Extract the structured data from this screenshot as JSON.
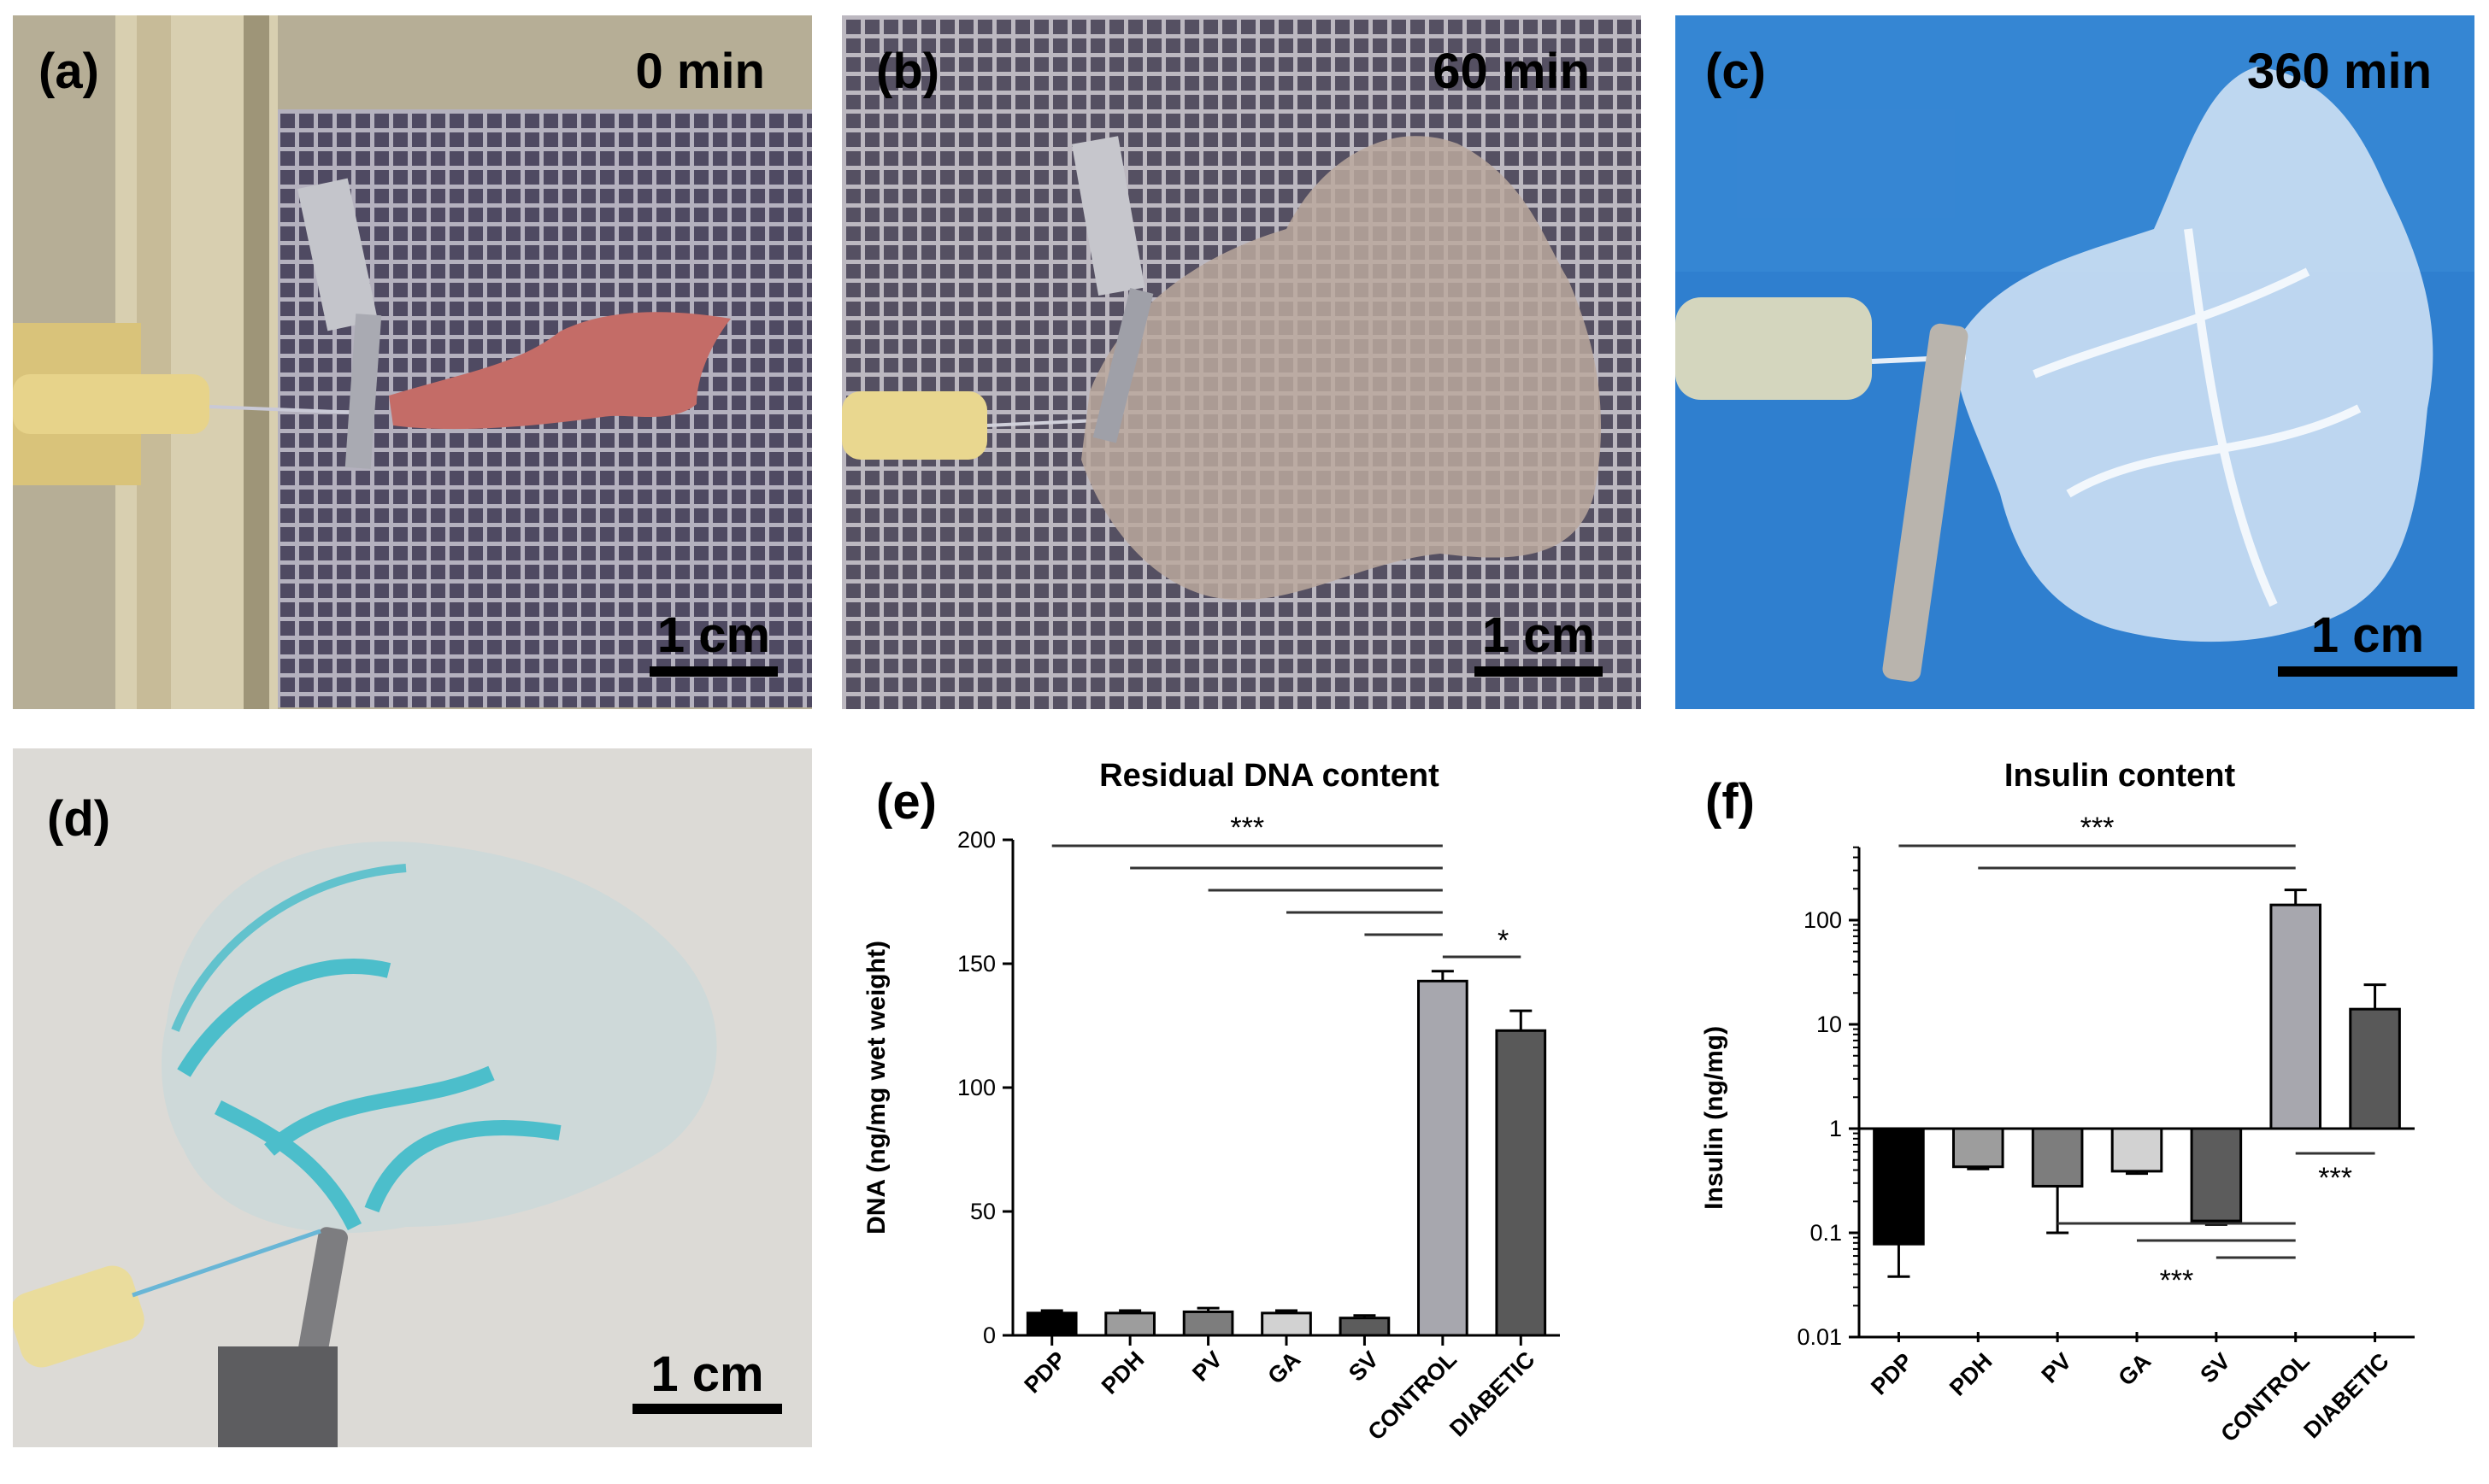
{
  "panels": {
    "a": {
      "label": "(a)",
      "time": "0 min",
      "scale": "1 cm"
    },
    "b": {
      "label": "(b)",
      "time": "60 min",
      "scale": "1 cm"
    },
    "c": {
      "label": "(c)",
      "time": "360 min",
      "scale": "1 cm"
    },
    "d": {
      "label": "(d)",
      "scale": "1 cm"
    },
    "e": {
      "label": "(e)"
    },
    "f": {
      "label": "(f)"
    }
  },
  "colors": {
    "PDP": "#000000",
    "PDH": "#9d9d9d",
    "PV": "#7d7d7d",
    "GA": "#d2d2d2",
    "SV": "#5c5c5c",
    "CONTROL": "#a7a7ae",
    "DIABETIC": "#595959"
  },
  "chart_data": [
    {
      "id": "e",
      "type": "bar",
      "title": "Residual DNA content",
      "xlabel": "",
      "ylabel": "DNA (ng/mg wet weight)",
      "categories": [
        "PDP",
        "PDH",
        "PV",
        "GA",
        "SV",
        "CONTROL",
        "DIABETIC"
      ],
      "values": [
        9,
        9,
        9.5,
        9,
        7,
        143,
        123
      ],
      "errors": [
        1,
        1,
        1.5,
        1,
        1,
        4,
        8
      ],
      "ylim": [
        0,
        200
      ],
      "yticks": [
        0,
        50,
        100,
        150,
        200
      ],
      "scale": "linear",
      "grid": false,
      "significance": [
        {
          "from": "PDP",
          "to": "CONTROL",
          "label": ""
        },
        {
          "from": "PDH",
          "to": "CONTROL",
          "label": ""
        },
        {
          "from": "PV",
          "to": "CONTROL",
          "label": ""
        },
        {
          "from": "GA",
          "to": "CONTROL",
          "label": ""
        },
        {
          "from": "SV",
          "to": "CONTROL",
          "label": ""
        },
        {
          "from": "CONTROL",
          "to": "DIABETIC",
          "label": "*"
        }
      ],
      "sig_group_label": "***"
    },
    {
      "id": "f",
      "type": "bar",
      "title": "Insulin content",
      "xlabel": "",
      "ylabel": "Insulin  (ng/mg)",
      "categories": [
        "PDP",
        "PDH",
        "PV",
        "GA",
        "SV",
        "CONTROL",
        "DIABETIC"
      ],
      "values": [
        0.078,
        0.43,
        0.28,
        0.39,
        0.13,
        140,
        14
      ],
      "error_low": [
        0.038,
        0.41,
        0.1,
        0.37,
        0.12,
        140,
        14
      ],
      "error_high": [
        0.078,
        0.43,
        0.28,
        0.39,
        0.13,
        195,
        24
      ],
      "ylim": [
        0.01,
        500
      ],
      "yticks": [
        0.01,
        0.1,
        1,
        10,
        100
      ],
      "ytick_labels": [
        "0.01",
        "0.1",
        "1",
        "10",
        "100"
      ],
      "scale": "log",
      "baseline": 1,
      "grid": false,
      "significance_top": [
        {
          "from": "PDP",
          "to": "CONTROL"
        },
        {
          "from": "PDH",
          "to": "CONTROL"
        }
      ],
      "sig_top_label": "***",
      "significance_bottom": [
        {
          "from": "PV",
          "to": "CONTROL"
        },
        {
          "from": "GA",
          "to": "CONTROL"
        },
        {
          "from": "SV",
          "to": "CONTROL"
        }
      ],
      "sig_bottom_label": "***",
      "significance_right": {
        "from": "CONTROL",
        "to": "DIABETIC",
        "label": "***"
      }
    }
  ]
}
